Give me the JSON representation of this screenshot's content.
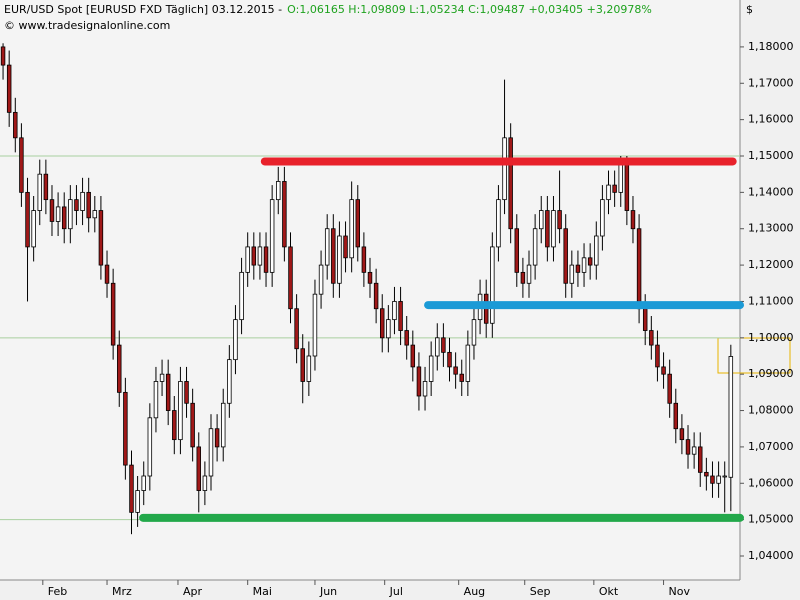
{
  "chart_data": {
    "type": "candlestick",
    "title": "EUR/USD Spot [EURUSD FXD  Täglich] 03.12.2015 -",
    "ohlc_text": "O:1,06165 H:1,09809 L:1,05234 C:1,09487 +0,03405 +3,20978%",
    "subtitle": "© www.tradesignalonline.com",
    "unit": "$",
    "xlim": [
      -0.5,
      120.5
    ],
    "xticks": [
      {
        "value": 6.5,
        "label": "Feb"
      },
      {
        "value": 17,
        "label": "Mrz"
      },
      {
        "value": 28.6,
        "label": "Apr"
      },
      {
        "value": 40,
        "label": "Mai"
      },
      {
        "value": 51,
        "label": "Jun"
      },
      {
        "value": 62.4,
        "label": "Jul"
      },
      {
        "value": 74.5,
        "label": "Aug"
      },
      {
        "value": 85.3,
        "label": "Sep"
      },
      {
        "value": 96.6,
        "label": "Okt"
      },
      {
        "value": 108,
        "label": "Nov"
      }
    ],
    "ylim": [
      1.0334,
      1.1929
    ],
    "yticks": [
      {
        "value": 1.04,
        "label": "1,04000"
      },
      {
        "value": 1.05,
        "label": "1,05000"
      },
      {
        "value": 1.06,
        "label": "1,06000"
      },
      {
        "value": 1.07,
        "label": "1,07000"
      },
      {
        "value": 1.08,
        "label": "1,08000"
      },
      {
        "value": 1.09,
        "label": "1,09000"
      },
      {
        "value": 1.1,
        "label": "1,10000"
      },
      {
        "value": 1.11,
        "label": "1,11000"
      },
      {
        "value": 1.12,
        "label": "1,12000"
      },
      {
        "value": 1.13,
        "label": "1,13000"
      },
      {
        "value": 1.14,
        "label": "1,14000"
      },
      {
        "value": 1.15,
        "label": "1,15000"
      },
      {
        "value": 1.16,
        "label": "1,16000"
      },
      {
        "value": 1.17,
        "label": "1,17000"
      },
      {
        "value": 1.18,
        "label": "1,18000"
      }
    ],
    "guides": {
      "values": [
        1.05,
        1.1,
        1.15
      ],
      "color": "#a9cf9f"
    },
    "up_color": "#ffffff",
    "down_color": "#a01818",
    "open": [
      1.18,
      1.175,
      1.162,
      1.155,
      1.14,
      1.125,
      1.135,
      1.145,
      1.138,
      1.132,
      1.136,
      1.13,
      1.138,
      1.135,
      1.14,
      1.133,
      1.135,
      1.12,
      1.115,
      1.098,
      1.085,
      1.065,
      1.052,
      1.058,
      1.062,
      1.078,
      1.088,
      1.09,
      1.08,
      1.072,
      1.088,
      1.082,
      1.07,
      1.058,
      1.062,
      1.075,
      1.07,
      1.082,
      1.094,
      1.105,
      1.118,
      1.125,
      1.12,
      1.125,
      1.118,
      1.138,
      1.143,
      1.125,
      1.108,
      1.097,
      1.088,
      1.095,
      1.112,
      1.12,
      1.13,
      1.115,
      1.128,
      1.122,
      1.138,
      1.125,
      1.118,
      1.115,
      1.108,
      1.1,
      1.105,
      1.11,
      1.102,
      1.098,
      1.092,
      1.084,
      1.088,
      1.095,
      1.1,
      1.096,
      1.092,
      1.09,
      1.088,
      1.098,
      1.105,
      1.112,
      1.104,
      1.125,
      1.138,
      1.155,
      1.13,
      1.118,
      1.115,
      1.12,
      1.13,
      1.135,
      1.125,
      1.135,
      1.13,
      1.115,
      1.12,
      1.118,
      1.122,
      1.12,
      1.128,
      1.138,
      1.142,
      1.14,
      1.148,
      1.135,
      1.13,
      1.108,
      1.102,
      1.098,
      1.092,
      1.09,
      1.082,
      1.075,
      1.072,
      1.068,
      1.07,
      1.063,
      1.062,
      1.06,
      1.062,
      1.06165
    ],
    "high": [
      1.181,
      1.179,
      1.166,
      1.159,
      1.144,
      1.139,
      1.149,
      1.149,
      1.142,
      1.14,
      1.14,
      1.142,
      1.142,
      1.144,
      1.144,
      1.139,
      1.139,
      1.124,
      1.119,
      1.102,
      1.089,
      1.069,
      1.062,
      1.066,
      1.082,
      1.092,
      1.094,
      1.094,
      1.084,
      1.092,
      1.092,
      1.086,
      1.074,
      1.066,
      1.079,
      1.079,
      1.086,
      1.098,
      1.109,
      1.122,
      1.129,
      1.129,
      1.129,
      1.129,
      1.142,
      1.147,
      1.147,
      1.129,
      1.112,
      1.101,
      1.099,
      1.116,
      1.124,
      1.134,
      1.134,
      1.132,
      1.132,
      1.143,
      1.142,
      1.129,
      1.122,
      1.119,
      1.112,
      1.109,
      1.114,
      1.114,
      1.106,
      1.102,
      1.096,
      1.092,
      1.099,
      1.104,
      1.104,
      1.1,
      1.096,
      1.094,
      1.102,
      1.109,
      1.116,
      1.116,
      1.129,
      1.142,
      1.171,
      1.159,
      1.134,
      1.122,
      1.124,
      1.134,
      1.139,
      1.139,
      1.139,
      1.146,
      1.134,
      1.124,
      1.124,
      1.126,
      1.126,
      1.132,
      1.142,
      1.146,
      1.146,
      1.15,
      1.15,
      1.139,
      1.134,
      1.112,
      1.106,
      1.102,
      1.096,
      1.094,
      1.086,
      1.079,
      1.076,
      1.074,
      1.074,
      1.067,
      1.066,
      1.066,
      1.066,
      1.09809
    ],
    "low": [
      1.171,
      1.158,
      1.151,
      1.136,
      1.11,
      1.121,
      1.131,
      1.134,
      1.128,
      1.128,
      1.126,
      1.126,
      1.131,
      1.131,
      1.129,
      1.129,
      1.116,
      1.111,
      1.094,
      1.081,
      1.061,
      1.046,
      1.048,
      1.054,
      1.058,
      1.074,
      1.084,
      1.076,
      1.068,
      1.068,
      1.078,
      1.066,
      1.052,
      1.054,
      1.058,
      1.066,
      1.066,
      1.078,
      1.09,
      1.101,
      1.114,
      1.116,
      1.116,
      1.114,
      1.114,
      1.134,
      1.121,
      1.104,
      1.093,
      1.082,
      1.084,
      1.091,
      1.108,
      1.116,
      1.111,
      1.111,
      1.118,
      1.118,
      1.121,
      1.114,
      1.111,
      1.104,
      1.096,
      1.096,
      1.101,
      1.098,
      1.094,
      1.088,
      1.08,
      1.08,
      1.084,
      1.091,
      1.092,
      1.088,
      1.086,
      1.084,
      1.084,
      1.094,
      1.101,
      1.1,
      1.1,
      1.121,
      1.134,
      1.126,
      1.114,
      1.111,
      1.111,
      1.116,
      1.126,
      1.121,
      1.121,
      1.126,
      1.111,
      1.111,
      1.114,
      1.114,
      1.116,
      1.116,
      1.124,
      1.134,
      1.136,
      1.136,
      1.131,
      1.126,
      1.104,
      1.098,
      1.094,
      1.088,
      1.086,
      1.078,
      1.071,
      1.068,
      1.064,
      1.064,
      1.059,
      1.058,
      1.056,
      1.056,
      1.052,
      1.05234
    ],
    "close": [
      1.175,
      1.162,
      1.155,
      1.14,
      1.125,
      1.135,
      1.145,
      1.138,
      1.132,
      1.136,
      1.13,
      1.138,
      1.135,
      1.14,
      1.133,
      1.135,
      1.12,
      1.115,
      1.098,
      1.085,
      1.065,
      1.052,
      1.058,
      1.062,
      1.078,
      1.088,
      1.09,
      1.08,
      1.072,
      1.088,
      1.082,
      1.07,
      1.058,
      1.062,
      1.075,
      1.07,
      1.082,
      1.094,
      1.105,
      1.118,
      1.125,
      1.12,
      1.125,
      1.118,
      1.138,
      1.143,
      1.125,
      1.108,
      1.097,
      1.088,
      1.095,
      1.112,
      1.12,
      1.13,
      1.115,
      1.128,
      1.122,
      1.138,
      1.125,
      1.118,
      1.115,
      1.108,
      1.1,
      1.105,
      1.11,
      1.102,
      1.098,
      1.092,
      1.084,
      1.088,
      1.095,
      1.1,
      1.096,
      1.092,
      1.09,
      1.088,
      1.098,
      1.105,
      1.112,
      1.104,
      1.125,
      1.138,
      1.155,
      1.13,
      1.118,
      1.115,
      1.12,
      1.13,
      1.135,
      1.125,
      1.135,
      1.13,
      1.115,
      1.12,
      1.118,
      1.122,
      1.12,
      1.128,
      1.138,
      1.142,
      1.14,
      1.148,
      1.135,
      1.13,
      1.108,
      1.102,
      1.098,
      1.092,
      1.09,
      1.082,
      1.075,
      1.072,
      1.068,
      1.07,
      1.063,
      1.062,
      1.06,
      1.062,
      1.062,
      1.09487
    ],
    "levels": [
      {
        "color": "#e8212b",
        "value": 1.1485,
        "x": [
          42.8,
          119.3
        ]
      },
      {
        "color": "#1b9ad6",
        "value": 1.109,
        "x": [
          69.5,
          120.5
        ]
      },
      {
        "color": "#22a84a",
        "value": 1.0505,
        "x": [
          22.9,
          120.5
        ]
      }
    ]
  }
}
